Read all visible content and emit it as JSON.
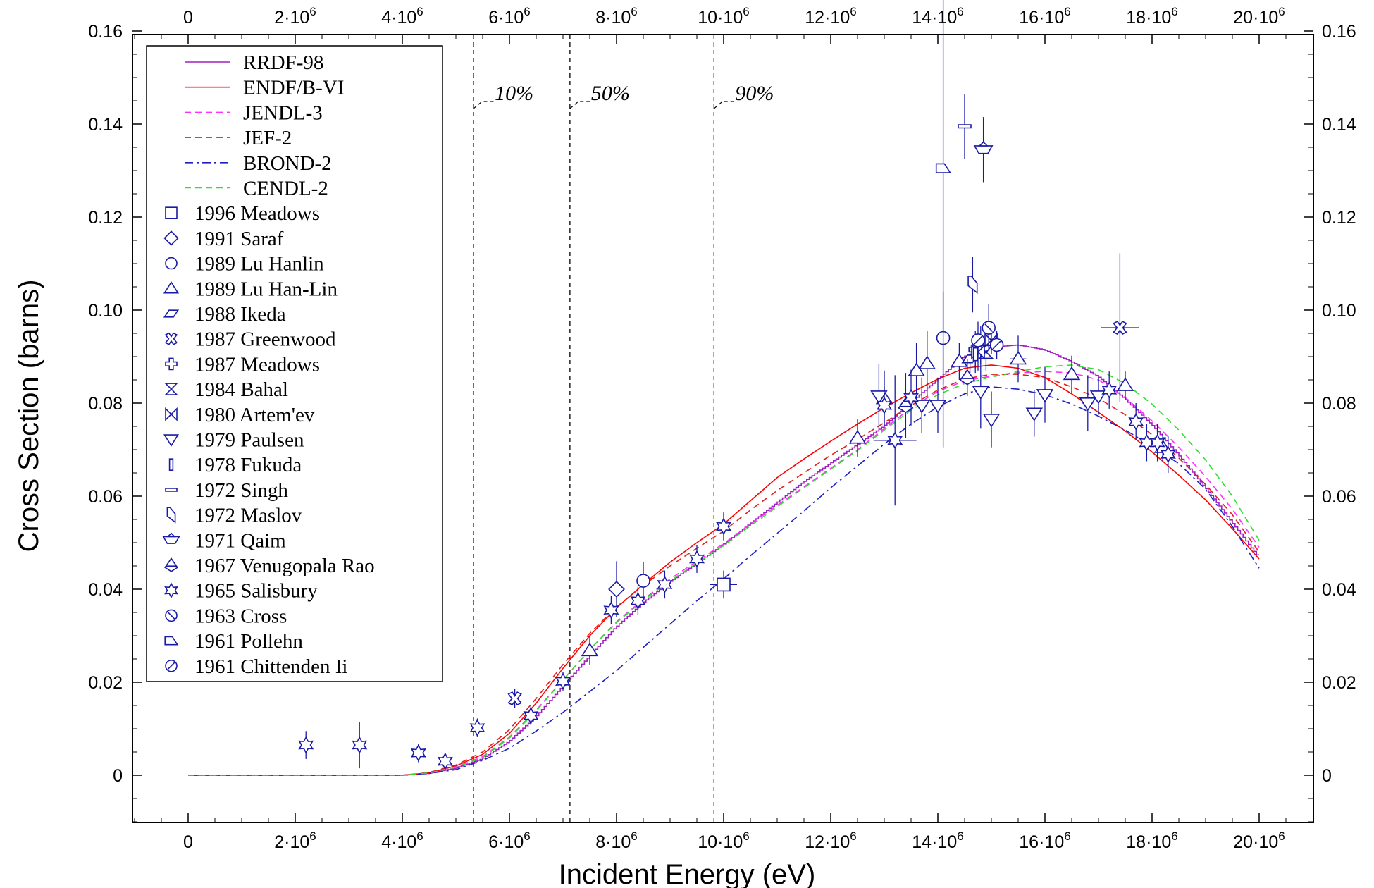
{
  "chart_data": {
    "type": "line",
    "xlabel": "Incident Energy (eV)",
    "ylabel": "Cross Section (barns)",
    "xlim": [
      -1200000,
      20800000
    ],
    "ylim": [
      -0.01,
      0.16
    ],
    "grid": false,
    "legend_position": "top-left",
    "x_ticks": [
      {
        "value": 0,
        "mant": "0",
        "exp": ""
      },
      {
        "value": 2000000,
        "mant": "2·10",
        "exp": "6"
      },
      {
        "value": 4000000,
        "mant": "4·10",
        "exp": "6"
      },
      {
        "value": 6000000,
        "mant": "6·10",
        "exp": "6"
      },
      {
        "value": 8000000,
        "mant": "8·10",
        "exp": "6"
      },
      {
        "value": 10000000,
        "mant": "10·10",
        "exp": "6"
      },
      {
        "value": 12000000,
        "mant": "12·10",
        "exp": "6"
      },
      {
        "value": 14000000,
        "mant": "14·10",
        "exp": "6"
      },
      {
        "value": 16000000,
        "mant": "16·10",
        "exp": "6"
      },
      {
        "value": 18000000,
        "mant": "18·10",
        "exp": "6"
      },
      {
        "value": 20000000,
        "mant": "20·10",
        "exp": "6"
      }
    ],
    "y_ticks": [
      {
        "value": 0,
        "label": "0"
      },
      {
        "value": 0.02,
        "label": "0.02"
      },
      {
        "value": 0.04,
        "label": "0.04"
      },
      {
        "value": 0.06,
        "label": "0.06"
      },
      {
        "value": 0.08,
        "label": "0.08"
      },
      {
        "value": 0.1,
        "label": "0.10"
      },
      {
        "value": 0.12,
        "label": "0.12"
      },
      {
        "value": 0.14,
        "label": "0.14"
      },
      {
        "value": 0.16,
        "label": "0.16"
      }
    ],
    "annotations": [
      {
        "x": 5330000,
        "label": "10%"
      },
      {
        "x": 7130000,
        "label": "50%"
      },
      {
        "x": 9820000,
        "label": "90%"
      }
    ],
    "series": [
      {
        "name": "RRDF-98",
        "color": "#a020c0",
        "dash": "",
        "step": true,
        "x": [
          0,
          2000000,
          4000000,
          4500000,
          5000000,
          5500000,
          6000000,
          6500000,
          7000000,
          7500000,
          8000000,
          8500000,
          9000000,
          9500000,
          10000000,
          10500000,
          11000000,
          11500000,
          12000000,
          12500000,
          13000000,
          13500000,
          14000000,
          14500000,
          15000000,
          15500000,
          16000000,
          16500000,
          17000000,
          17500000,
          18000000,
          18500000,
          19000000,
          19500000,
          20000000
        ],
        "y": [
          0,
          0,
          0,
          0.0004,
          0.0015,
          0.0035,
          0.0072,
          0.0125,
          0.019,
          0.0255,
          0.0318,
          0.037,
          0.0415,
          0.0455,
          0.0495,
          0.054,
          0.0585,
          0.063,
          0.067,
          0.071,
          0.075,
          0.08,
          0.085,
          0.09,
          0.092,
          0.0925,
          0.0915,
          0.089,
          0.0858,
          0.081,
          0.0755,
          0.069,
          0.062,
          0.0545,
          0.047
        ]
      },
      {
        "name": "ENDF/B-VI",
        "color": "#ff0000",
        "dash": "",
        "step": false,
        "x": [
          0,
          2000000,
          4000000,
          4500000,
          5000000,
          5500000,
          6000000,
          6500000,
          7000000,
          7500000,
          8000000,
          8500000,
          9000000,
          9500000,
          10000000,
          10500000,
          11000000,
          11500000,
          12000000,
          12500000,
          13000000,
          13500000,
          14000000,
          14500000,
          15000000,
          15500000,
          16000000,
          16500000,
          17000000,
          17500000,
          18000000,
          18500000,
          19000000,
          19500000,
          20000000
        ],
        "y": [
          0,
          0,
          0,
          0.0005,
          0.002,
          0.0045,
          0.009,
          0.0155,
          0.023,
          0.03,
          0.036,
          0.041,
          0.0458,
          0.05,
          0.054,
          0.059,
          0.064,
          0.068,
          0.0718,
          0.0755,
          0.079,
          0.0822,
          0.0852,
          0.0875,
          0.0882,
          0.0875,
          0.0855,
          0.082,
          0.078,
          0.074,
          0.0695,
          0.0645,
          0.0592,
          0.053,
          0.0465
        ]
      },
      {
        "name": "JENDL-3",
        "color": "#ff30ff",
        "dash": "9,6",
        "step": false,
        "x": [
          0,
          2000000,
          4000000,
          4500000,
          5000000,
          5500000,
          6000000,
          6500000,
          7000000,
          7500000,
          8000000,
          8500000,
          9000000,
          9500000,
          10000000,
          10500000,
          11000000,
          11500000,
          12000000,
          12500000,
          13000000,
          13500000,
          14000000,
          14500000,
          15000000,
          15500000,
          16000000,
          16500000,
          17000000,
          17500000,
          18000000,
          18500000,
          19000000,
          19500000,
          20000000
        ],
        "y": [
          0,
          0,
          0,
          0.0005,
          0.0018,
          0.004,
          0.0082,
          0.014,
          0.0205,
          0.027,
          0.033,
          0.0378,
          0.0422,
          0.046,
          0.0498,
          0.054,
          0.058,
          0.062,
          0.066,
          0.07,
          0.0745,
          0.079,
          0.0825,
          0.0848,
          0.0858,
          0.0865,
          0.0868,
          0.0865,
          0.085,
          0.0812,
          0.0762,
          0.0705,
          0.0642,
          0.0572,
          0.049
        ]
      },
      {
        "name": "JEF-2",
        "color": "#e02020",
        "dash": "9,6",
        "step": false,
        "x": [
          0,
          2000000,
          4000000,
          4500000,
          5000000,
          5500000,
          6000000,
          6500000,
          7000000,
          7500000,
          8000000,
          8500000,
          9000000,
          9500000,
          10000000,
          10500000,
          11000000,
          11500000,
          12000000,
          12500000,
          13000000,
          13500000,
          14000000,
          14500000,
          15000000,
          15500000,
          16000000,
          16500000,
          17000000,
          17500000,
          18000000,
          18500000,
          19000000,
          19500000,
          20000000
        ],
        "y": [
          0,
          0,
          0,
          0.0006,
          0.0022,
          0.005,
          0.0098,
          0.0165,
          0.0238,
          0.0305,
          0.0362,
          0.0408,
          0.045,
          0.0488,
          0.0525,
          0.057,
          0.0612,
          0.065,
          0.0688,
          0.0722,
          0.0758,
          0.0795,
          0.0828,
          0.0852,
          0.0862,
          0.0862,
          0.0855,
          0.0835,
          0.081,
          0.0775,
          0.0732,
          0.0682,
          0.0625,
          0.056,
          0.048
        ]
      },
      {
        "name": "BROND-2",
        "color": "#2020c0",
        "dash": "12,5,3,5",
        "step": false,
        "x": [
          0,
          2000000,
          4000000,
          4500000,
          5000000,
          5500000,
          6000000,
          6500000,
          7000000,
          7500000,
          8000000,
          8500000,
          9000000,
          9500000,
          10000000,
          10500000,
          11000000,
          11500000,
          12000000,
          12500000,
          13000000,
          13500000,
          14000000,
          14500000,
          15000000,
          15500000,
          16000000,
          16500000,
          17000000,
          17500000,
          18000000,
          18500000,
          19000000,
          19500000,
          20000000
        ],
        "y": [
          0,
          0,
          0,
          0.0004,
          0.0012,
          0.0032,
          0.0058,
          0.0095,
          0.0135,
          0.018,
          0.0225,
          0.0275,
          0.0325,
          0.0375,
          0.0422,
          0.0472,
          0.052,
          0.0568,
          0.0618,
          0.0665,
          0.0712,
          0.0755,
          0.0792,
          0.082,
          0.0835,
          0.083,
          0.0818,
          0.0798,
          0.0772,
          0.0742,
          0.0708,
          0.067,
          0.0615,
          0.0535,
          0.0445
        ]
      },
      {
        "name": "CENDL-2",
        "color": "#30e030",
        "dash": "9,6",
        "step": false,
        "x": [
          0,
          2000000,
          4000000,
          4500000,
          5000000,
          5500000,
          6000000,
          6500000,
          7000000,
          7500000,
          8000000,
          8500000,
          9000000,
          9500000,
          10000000,
          10500000,
          11000000,
          11500000,
          12000000,
          12500000,
          13000000,
          13500000,
          14000000,
          14500000,
          15000000,
          15500000,
          16000000,
          16500000,
          17000000,
          17500000,
          18000000,
          18500000,
          19000000,
          19500000,
          20000000
        ],
        "y": [
          0,
          0,
          0,
          0.0005,
          0.0017,
          0.0038,
          0.008,
          0.0138,
          0.0205,
          0.027,
          0.0328,
          0.0376,
          0.0418,
          0.0456,
          0.0494,
          0.0536,
          0.0577,
          0.0618,
          0.0658,
          0.0698,
          0.0742,
          0.0785,
          0.0818,
          0.0842,
          0.0856,
          0.0868,
          0.0878,
          0.0882,
          0.0872,
          0.0842,
          0.0798,
          0.0742,
          0.0678,
          0.06,
          0.0505
        ]
      }
    ],
    "experiments": [
      {
        "name": "1996 Meadows",
        "marker": "square",
        "points": [
          [
            10000000,
            0.041,
            0.003,
            250000
          ]
        ]
      },
      {
        "name": "1991 Saraf",
        "marker": "diamond",
        "points": [
          [
            8000000,
            0.04,
            0.006,
            0
          ]
        ]
      },
      {
        "name": "1989 Lu Hanlin",
        "marker": "circle",
        "points": [
          [
            8500000,
            0.0418,
            0.004,
            0
          ],
          [
            14100000,
            0.094,
            0.01,
            100000
          ]
        ]
      },
      {
        "name": "1989 Lu Han-Lin",
        "marker": "triangle-up",
        "points": [
          [
            7500000,
            0.0268,
            0.003,
            0
          ],
          [
            12500000,
            0.0725,
            0.004,
            100000
          ],
          [
            13000000,
            0.081,
            0.006,
            100000
          ],
          [
            13600000,
            0.087,
            0.006,
            100000
          ],
          [
            13800000,
            0.0885,
            0.007,
            100000
          ],
          [
            14400000,
            0.089,
            0.004,
            100000
          ],
          [
            15500000,
            0.0895,
            0.005,
            150000
          ],
          [
            16500000,
            0.0862,
            0.004,
            100000
          ],
          [
            17500000,
            0.0838,
            0.003,
            0
          ],
          [
            18200000,
            0.0705,
            0.003,
            0
          ]
        ]
      },
      {
        "name": "1988 Ikeda",
        "marker": "parallelogram",
        "points": [
          [
            14600000,
            0.0895,
            0.003,
            0
          ]
        ]
      },
      {
        "name": "1987 Greenwood",
        "marker": "xcross",
        "points": [
          [
            6100000,
            0.0165,
            0.002,
            0
          ],
          [
            17400000,
            0.0962,
            0.016,
            350000
          ]
        ]
      },
      {
        "name": "1987 Meadows",
        "marker": "plus",
        "points": [
          [
            14700000,
            0.0915,
            0.004,
            0
          ]
        ]
      },
      {
        "name": "1984 Bahal",
        "marker": "hourglass",
        "points": [
          [
            14800000,
            0.0925,
            0.004,
            0
          ],
          [
            14900000,
            0.091,
            0.004,
            0
          ]
        ]
      },
      {
        "name": "1980 Artem'ev",
        "marker": "bowtie",
        "points": [
          [
            14750000,
            0.091,
            0.004,
            0
          ],
          [
            15000000,
            0.0935,
            0.003,
            0
          ]
        ]
      },
      {
        "name": "1979 Paulsen",
        "marker": "triangle-down",
        "points": [
          [
            12900000,
            0.0815,
            0.007,
            100000
          ],
          [
            13700000,
            0.0795,
            0.006,
            100000
          ],
          [
            14000000,
            0.0795,
            0.006,
            100000
          ],
          [
            14800000,
            0.0825,
            0.008,
            100000
          ],
          [
            15000000,
            0.0765,
            0.006,
            100000
          ],
          [
            15800000,
            0.0778,
            0.005,
            0
          ],
          [
            16000000,
            0.0818,
            0.006,
            100000
          ],
          [
            16800000,
            0.08,
            0.006,
            100000
          ],
          [
            17000000,
            0.0815,
            0.004,
            0
          ]
        ]
      },
      {
        "name": "1978 Fukuda",
        "marker": "thin-rect",
        "points": [
          [
            14700000,
            0.0905,
            0.004,
            0
          ]
        ]
      },
      {
        "name": "1972 Singh",
        "marker": "flat-rect",
        "points": [
          [
            14500000,
            0.1395,
            0.007,
            100000
          ]
        ]
      },
      {
        "name": "1972 Maslov",
        "marker": "slant",
        "points": [
          [
            14650000,
            0.1055,
            0.006,
            0
          ]
        ]
      },
      {
        "name": "1971 Qaim",
        "marker": "boat",
        "points": [
          [
            14850000,
            0.1345,
            0.007,
            100000
          ]
        ]
      },
      {
        "name": "1967 Venugopala Rao",
        "marker": "tri-diamond",
        "points": [
          [
            13400000,
            0.0795,
            0.007,
            0
          ],
          [
            14550000,
            0.0855,
            0.004,
            0
          ]
        ]
      },
      {
        "name": "1965 Salisbury",
        "marker": "star",
        "points": [
          [
            2200000,
            0.0065,
            0.003,
            0
          ],
          [
            3200000,
            0.0065,
            0.005,
            0
          ],
          [
            4300000,
            0.0048,
            0.002,
            0
          ],
          [
            4800000,
            0.003,
            0.0015,
            0
          ],
          [
            5400000,
            0.0102,
            0.002,
            0
          ],
          [
            6400000,
            0.0128,
            0.002,
            0
          ],
          [
            7000000,
            0.0202,
            0.002,
            0
          ],
          [
            7900000,
            0.0355,
            0.003,
            0
          ],
          [
            8400000,
            0.0375,
            0.003,
            0
          ],
          [
            8900000,
            0.041,
            0.003,
            0
          ],
          [
            9500000,
            0.0465,
            0.003,
            0
          ],
          [
            10000000,
            0.0535,
            0.003,
            0
          ],
          [
            13000000,
            0.0795,
            0.004,
            0
          ],
          [
            13200000,
            0.072,
            0.014,
            400000
          ],
          [
            13500000,
            0.0812,
            0.006,
            0
          ],
          [
            17200000,
            0.0828,
            0.004,
            0
          ],
          [
            17700000,
            0.076,
            0.004,
            0
          ],
          [
            17900000,
            0.0715,
            0.004,
            0
          ],
          [
            18100000,
            0.0715,
            0.004,
            0
          ],
          [
            18300000,
            0.069,
            0.004,
            0
          ]
        ]
      },
      {
        "name": "1963 Cross",
        "marker": "circle-slash",
        "points": [
          [
            14950000,
            0.0962,
            0.005,
            0
          ]
        ]
      },
      {
        "name": "1961 Pollehn",
        "marker": "wedge",
        "points": [
          [
            14100000,
            0.1305,
            0.06,
            100000
          ]
        ]
      },
      {
        "name": "1961 Chittenden Ii",
        "marker": "circle-slash2",
        "points": [
          [
            14750000,
            0.0935,
            0.004,
            0
          ],
          [
            15100000,
            0.0925,
            0.003,
            0
          ]
        ]
      }
    ]
  }
}
